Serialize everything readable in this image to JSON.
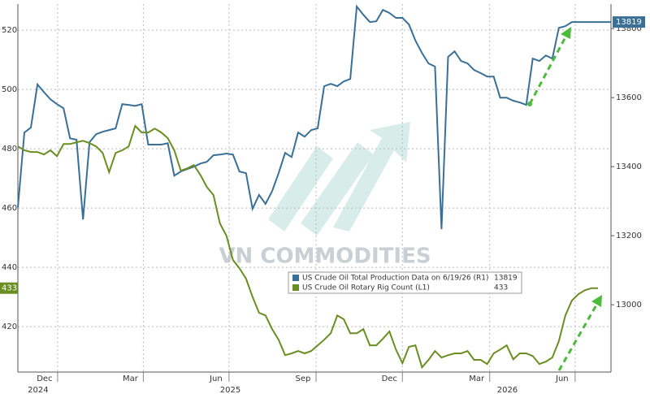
{
  "chart_data": {
    "type": "line",
    "watermark": "VN COMMODITIES",
    "xlim": [
      0,
      91
    ],
    "xticks": [
      {
        "value": 4.1,
        "label": "Dec"
      },
      {
        "value": 17.25,
        "label": "Mar"
      },
      {
        "value": 30.4,
        "label": "Jun"
      },
      {
        "value": 43.75,
        "label": "Sep"
      },
      {
        "value": 57,
        "label": "Dec"
      },
      {
        "value": 70.4,
        "label": "Mar"
      },
      {
        "value": 83.5,
        "label": "Jun"
      }
    ],
    "year_labels": [
      {
        "value": 3.1,
        "label": "2024"
      },
      {
        "value": 32.6,
        "label": "2025"
      },
      {
        "value": 75.1,
        "label": "2026"
      }
    ],
    "ylim": [
      404.7,
      528.8
    ],
    "yticks": [
      420,
      440,
      460,
      480,
      500,
      520
    ],
    "y2lim": [
      12805,
      13871
    ],
    "y2ticks": [
      13000,
      13200,
      13400,
      13600,
      13800
    ],
    "grid": true,
    "series": [
      {
        "name": "US Crude Oil Total Production Data on 6/19/26 (R1)",
        "color": "#3a6f98",
        "axis": "y2",
        "values": [
          13282,
          13499,
          13513,
          13638,
          13616,
          13595,
          13581,
          13569,
          13482,
          13478,
          13247,
          13471,
          13494,
          13501,
          13506,
          13511,
          13581,
          13579,
          13576,
          13581,
          13464,
          13464,
          13464,
          13468,
          13374,
          13386,
          13393,
          13400,
          13409,
          13414,
          13433,
          13435,
          13438,
          13435,
          13386,
          13381,
          13278,
          13318,
          13292,
          13329,
          13381,
          13440,
          13428,
          13499,
          13487,
          13506,
          13511,
          13633,
          13640,
          13633,
          13647,
          13654,
          13864,
          13840,
          13819,
          13821,
          13854,
          13845,
          13831,
          13831,
          13812,
          13765,
          13729,
          13699,
          13690,
          13219,
          13718,
          13734,
          13706,
          13699,
          13680,
          13671,
          13661,
          13661,
          13600,
          13600,
          13591,
          13586,
          13579,
          13713,
          13706,
          13722,
          13713,
          13802,
          13807,
          13819,
          13819,
          13819,
          13819,
          13819,
          13819,
          13819
        ]
      },
      {
        "name": "US Crude Oil Rotary Rig Count (L1)",
        "color": "#6b8e23",
        "values": [
          480.8,
          479.5,
          478.9,
          478.9,
          478.1,
          479.5,
          477.5,
          481.6,
          481.6,
          482.2,
          482.7,
          481.9,
          480.8,
          478.6,
          472.1,
          478.6,
          479.5,
          480.8,
          487.7,
          485.5,
          485.5,
          486.8,
          485.5,
          483.6,
          479.5,
          472.6,
          473.4,
          474.5,
          471.2,
          467.1,
          464.4,
          454.8,
          450.7,
          442.5,
          439.7,
          436.2,
          430.1,
          424.7,
          423.8,
          419.2,
          415.6,
          410.4,
          411.0,
          411.8,
          411.0,
          411.8,
          413.7,
          415.6,
          417.8,
          423.8,
          422.5,
          417.8,
          417.8,
          419.2,
          413.7,
          413.7,
          415.9,
          418.4,
          412.3,
          407.7,
          413.2,
          413.7,
          406.3,
          408.8,
          411.8,
          409.6,
          410.4,
          411.0,
          411.0,
          411.8,
          408.8,
          408.8,
          407.4,
          411.0,
          412.3,
          413.7,
          409.0,
          411.0,
          411.0,
          410.1,
          407.4,
          408.2,
          409.6,
          415.1,
          423.8,
          428.8,
          431.0,
          432.3,
          433,
          433,
          null,
          null
        ]
      }
    ]
  }
}
